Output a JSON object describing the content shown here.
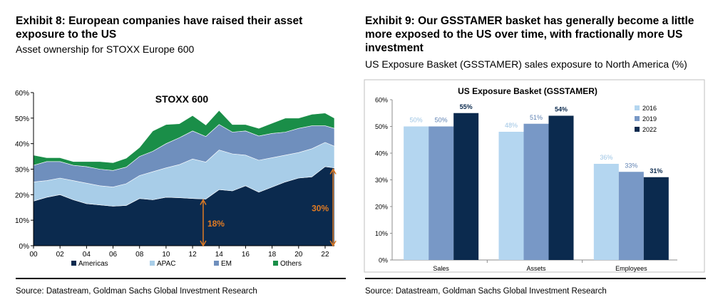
{
  "exhibits": [
    {
      "title": "Exhibit 8: European companies have raised their asset exposure to the US",
      "subtitle": "Asset ownership for STOXX Europe 600",
      "source": "Source: Datastream, Goldman Sachs Global Investment Research"
    },
    {
      "title": "Exhibit 9: Our GSSTAMER basket has generally become a little more exposed to the US over time, with fractionally more US investment",
      "subtitle": "US Exposure Basket (GSSTAMER) sales exposure to North America (%)",
      "source": "Source: Datastream, Goldman Sachs Global Investment Research"
    }
  ],
  "chart_data": [
    {
      "type": "area",
      "stacked": true,
      "title": "STOXX 600",
      "x": [
        2000,
        2001,
        2002,
        2003,
        2004,
        2005,
        2006,
        2007,
        2008,
        2009,
        2010,
        2011,
        2012,
        2013,
        2014,
        2015,
        2016,
        2017,
        2018,
        2019,
        2020,
        2021,
        2022,
        2022.7
      ],
      "xticks": [
        "00",
        "02",
        "04",
        "06",
        "08",
        "10",
        "12",
        "14",
        "16",
        "18",
        "20",
        "22"
      ],
      "xtick_values": [
        2000,
        2002,
        2004,
        2006,
        2008,
        2010,
        2012,
        2014,
        2016,
        2018,
        2020,
        2022
      ],
      "ylim": [
        0,
        60
      ],
      "yticks": [
        "0%",
        "10%",
        "20%",
        "30%",
        "40%",
        "50%",
        "60%"
      ],
      "ytick_values": [
        0,
        10,
        20,
        30,
        40,
        50,
        60
      ],
      "series": [
        {
          "name": "Americas",
          "color": "#0b2a4e",
          "values": [
            17.5,
            19,
            20,
            18,
            16.5,
            16,
            15.5,
            15.8,
            18.5,
            18,
            19,
            18.8,
            18.5,
            18.3,
            22,
            21.5,
            23.5,
            21,
            23,
            25,
            26.5,
            27,
            31,
            30.5
          ]
        },
        {
          "name": "APAC",
          "color": "#a8cde8",
          "values": [
            7.5,
            6.5,
            6.5,
            7.5,
            8,
            7.5,
            7.5,
            8.5,
            9,
            11,
            11.5,
            13,
            15.5,
            14.5,
            15.5,
            14.5,
            12,
            12.5,
            11.5,
            10.5,
            10,
            11,
            9.5,
            8.5
          ]
        },
        {
          "name": "EM",
          "color": "#6f8fbd",
          "values": [
            6.5,
            7.5,
            6.5,
            6,
            6.5,
            6.5,
            6.5,
            6.5,
            7.5,
            8,
            9.5,
            10.5,
            11,
            10,
            10,
            8.5,
            9.5,
            9.5,
            9.5,
            9,
            9.5,
            9,
            6.5,
            7
          ]
        },
        {
          "name": "Others",
          "color": "#1a8e48",
          "values": [
            4,
            1.5,
            1.5,
            1.5,
            2,
            3,
            3,
            3.5,
            3.5,
            8,
            7.5,
            5.5,
            6,
            4.5,
            5.5,
            3,
            2.5,
            3,
            4,
            5.5,
            4,
            4.5,
            5,
            4
          ]
        }
      ],
      "legend_position": "bottom",
      "annotations": [
        {
          "label": "18%",
          "x": 2012.8,
          "y_from": 0,
          "y_to": 18,
          "color": "#e07b23"
        },
        {
          "label": "30%",
          "x": 2022.6,
          "y_from": 0,
          "y_to": 30,
          "color": "#e07b23"
        }
      ],
      "grid": false
    },
    {
      "type": "bar",
      "title": "US Exposure Basket (GSSTAMER)",
      "categories": [
        "Sales",
        "Assets",
        "Employees"
      ],
      "ylim": [
        0,
        60
      ],
      "yticks": [
        "0%",
        "10%",
        "20%",
        "30%",
        "40%",
        "50%",
        "60%"
      ],
      "ytick_values": [
        0,
        10,
        20,
        30,
        40,
        50,
        60
      ],
      "series": [
        {
          "name": "2016",
          "color": "#b4d6f0",
          "label_color": "#9cc4e4",
          "values": [
            50,
            48,
            36
          ],
          "labels": [
            "50%",
            "48%",
            "36%"
          ]
        },
        {
          "name": "2019",
          "color": "#7898c6",
          "label_color": "#5f82b3",
          "values": [
            50,
            51,
            33
          ],
          "labels": [
            "50%",
            "51%",
            "33%"
          ]
        },
        {
          "name": "2022",
          "color": "#0b2a4e",
          "label_color": "#0b2a4e",
          "values": [
            55,
            54,
            31
          ],
          "labels": [
            "55%",
            "54%",
            "31%"
          ]
        }
      ],
      "legend_position": "right",
      "grid": false
    }
  ]
}
